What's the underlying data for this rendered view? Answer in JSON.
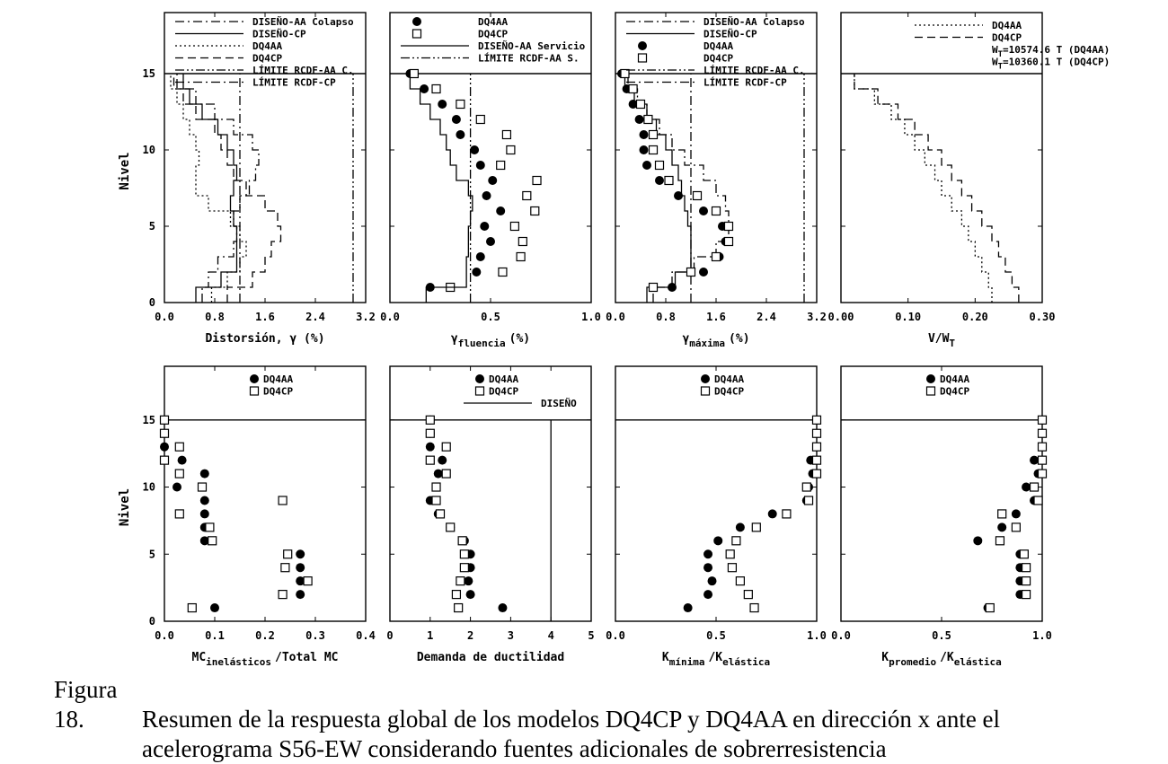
{
  "chart_data": [
    {
      "id": "p1",
      "type": "line",
      "xlim": [
        0,
        3.2
      ],
      "ylim": [
        0,
        19
      ],
      "xticks": [
        0,
        0.8,
        1.6,
        2.4,
        3.2
      ],
      "xtick_labels": [
        "0.0",
        "0.8",
        "1.6",
        "2.4",
        "3.2"
      ],
      "yticks": [
        0,
        5,
        10,
        15
      ],
      "ytick_labels": [
        "0",
        "5",
        "10",
        "15"
      ],
      "ylabel": "Nivel",
      "xlabel_parts": [
        "Distorsión, γ (%)"
      ],
      "roof_level": 15,
      "series": [
        {
          "name": "DISEÑO-AA Colapso",
          "style": "dashdot",
          "y": [
            1,
            2,
            3,
            4,
            5,
            6,
            7,
            8,
            9,
            10,
            11,
            12,
            13,
            14,
            15
          ],
          "values": [
            0.6,
            0.7,
            0.85,
            1.1,
            1.15,
            1.1,
            1.2,
            1.35,
            1.45,
            1.5,
            1.4,
            1.1,
            0.8,
            0.5,
            0.2
          ]
        },
        {
          "name": "DISEÑO-CP",
          "style": "solid",
          "y": [
            1,
            2,
            3,
            4,
            5,
            6,
            7,
            8,
            9,
            10,
            11,
            12,
            13,
            14,
            15
          ],
          "values": [
            0.5,
            0.9,
            1.15,
            1.15,
            1.15,
            1.1,
            1.05,
            1.1,
            1.15,
            1.1,
            1.0,
            0.85,
            0.6,
            0.4,
            0.3
          ]
        },
        {
          "name": "DQ4AA",
          "style": "dotted",
          "y": [
            1,
            2,
            3,
            4,
            5,
            6,
            7,
            8,
            9,
            10,
            11,
            12,
            13,
            14,
            15
          ],
          "values": [
            0.75,
            1.0,
            1.2,
            1.3,
            1.2,
            1.05,
            0.7,
            0.5,
            0.5,
            0.55,
            0.5,
            0.4,
            0.3,
            0.2,
            0.1
          ]
        },
        {
          "name": "DQ4CP",
          "style": "dashed",
          "y": [
            1,
            2,
            3,
            4,
            5,
            6,
            7,
            8,
            9,
            10,
            11,
            12,
            13,
            14,
            15
          ],
          "values": [
            1.0,
            1.4,
            1.6,
            1.7,
            1.85,
            1.8,
            1.6,
            1.3,
            1.1,
            1.0,
            0.9,
            0.8,
            0.5,
            0.3,
            0.15
          ]
        }
      ],
      "vlines": [
        {
          "name": "LÍMITE RCDF-AA C.",
          "x": 3.0,
          "style": "dashdotdot"
        },
        {
          "name": "LÍMITE RCDF-CP",
          "x": 1.2,
          "style": "dashdot"
        }
      ],
      "legend": [
        "DISEÑO-AA Colapso",
        "DISEÑO-CP",
        "DQ4AA",
        "DQ4CP",
        "LÍMITE RCDF-AA C.",
        "LÍMITE RCDF-CP"
      ]
    },
    {
      "id": "p2",
      "type": "scatter",
      "xlim": [
        0,
        1.0
      ],
      "ylim": [
        0,
        19
      ],
      "xticks": [
        0,
        0.5,
        1.0
      ],
      "xtick_labels": [
        "0.0",
        "0.5",
        "1.0"
      ],
      "yticks": [
        0,
        5,
        10,
        15
      ],
      "ytick_labels": [],
      "xlabel_parts": [
        "γ",
        "fluencia",
        "(%)"
      ],
      "roof_level": 15,
      "series": [
        {
          "name": "DQ4AA",
          "marker": "filled-circle",
          "y": [
            1,
            2,
            3,
            4,
            5,
            6,
            7,
            8,
            9,
            10,
            11,
            12,
            13,
            14,
            15
          ],
          "values": [
            0.2,
            0.43,
            0.45,
            0.5,
            0.47,
            0.55,
            0.48,
            0.51,
            0.45,
            0.42,
            0.35,
            0.33,
            0.26,
            0.17,
            0.1
          ]
        },
        {
          "name": "DQ4CP",
          "marker": "open-square",
          "y": [
            1,
            2,
            3,
            4,
            5,
            6,
            7,
            8,
            9,
            10,
            11,
            12,
            13,
            14,
            15
          ],
          "values": [
            0.3,
            0.56,
            0.65,
            0.66,
            0.62,
            0.72,
            0.68,
            0.73,
            0.55,
            0.6,
            0.58,
            0.45,
            0.35,
            0.23,
            0.12
          ]
        },
        {
          "name": "DISEÑO-AA Servicio",
          "style": "solid",
          "y": [
            1,
            2,
            3,
            4,
            5,
            6,
            7,
            8,
            9,
            10,
            11,
            12,
            13,
            14,
            15
          ],
          "values": [
            0.18,
            0.38,
            0.38,
            0.39,
            0.39,
            0.4,
            0.41,
            0.39,
            0.33,
            0.3,
            0.28,
            0.25,
            0.2,
            0.15,
            0.1
          ]
        }
      ],
      "vlines": [
        {
          "name": "LÍMITE RCDF-AA S.",
          "x": 0.4,
          "style": "dashdotdot"
        }
      ],
      "legend": [
        "DQ4AA",
        "DQ4CP",
        "DISEÑO-AA Servicio",
        "LÍMITE RCDF-AA S."
      ]
    },
    {
      "id": "p3",
      "type": "scatter",
      "xlim": [
        0,
        3.2
      ],
      "ylim": [
        0,
        19
      ],
      "xticks": [
        0,
        0.8,
        1.6,
        2.4,
        3.2
      ],
      "xtick_labels": [
        "0.0",
        "0.8",
        "1.6",
        "2.4",
        "3.2"
      ],
      "yticks": [
        0,
        5,
        10,
        15
      ],
      "ytick_labels": [],
      "xlabel_parts": [
        "γ",
        "máxima",
        "(%)"
      ],
      "roof_level": 15,
      "series": [
        {
          "name": "DISEÑO-AA Colapso",
          "style": "dashdot",
          "y": [
            1,
            2,
            3,
            4,
            5,
            6,
            7,
            8,
            9,
            10,
            11,
            12,
            13,
            14,
            15
          ],
          "values": [
            0.6,
            0.9,
            1.25,
            1.6,
            1.8,
            1.8,
            1.75,
            1.6,
            1.4,
            1.1,
            0.9,
            0.7,
            0.5,
            0.35,
            0.2
          ]
        },
        {
          "name": "DISEÑO-CP",
          "style": "solid",
          "y": [
            1,
            2,
            3,
            4,
            5,
            6,
            7,
            8,
            9,
            10,
            11,
            12,
            13,
            14,
            15
          ],
          "values": [
            0.5,
            0.95,
            1.2,
            1.2,
            1.2,
            1.15,
            1.1,
            1.05,
            1.0,
            0.9,
            0.8,
            0.65,
            0.5,
            0.3,
            0.15
          ]
        },
        {
          "name": "DQ4AA",
          "marker": "filled-circle",
          "y": [
            1,
            2,
            3,
            4,
            5,
            6,
            7,
            8,
            9,
            10,
            11,
            12,
            13,
            14,
            15
          ],
          "values": [
            0.9,
            1.4,
            1.65,
            1.75,
            1.7,
            1.4,
            1.0,
            0.7,
            0.5,
            0.45,
            0.45,
            0.38,
            0.28,
            0.18,
            0.1
          ]
        },
        {
          "name": "DQ4CP",
          "marker": "open-square",
          "y": [
            1,
            2,
            3,
            4,
            5,
            6,
            7,
            8,
            9,
            10,
            11,
            12,
            13,
            14,
            15
          ],
          "values": [
            0.6,
            1.2,
            1.6,
            1.8,
            1.8,
            1.6,
            1.3,
            0.85,
            0.7,
            0.6,
            0.6,
            0.52,
            0.4,
            0.28,
            0.15
          ]
        }
      ],
      "vlines": [
        {
          "name": "LÍMITE RCDF-AA C.",
          "x": 3.0,
          "style": "dashdotdot"
        },
        {
          "name": "LÍMITE RCDF-CP",
          "x": 1.2,
          "style": "dashdot"
        }
      ],
      "legend": [
        "DISEÑO-AA Colapso",
        "DISEÑO-CP",
        "DQ4AA",
        "DQ4CP",
        "LÍMITE RCDF-AA C.",
        "LÍMITE RCDF-CP"
      ]
    },
    {
      "id": "p4",
      "type": "line",
      "xlim": [
        0,
        0.3
      ],
      "ylim": [
        0,
        19
      ],
      "xticks": [
        0,
        0.1,
        0.2,
        0.3
      ],
      "xtick_labels": [
        "0.00",
        "0.10",
        "0.20",
        "0.30"
      ],
      "yticks": [
        0,
        5,
        10,
        15
      ],
      "ytick_labels": [],
      "xlabel_parts": [
        "V/W",
        "T"
      ],
      "roof_level": 15,
      "series": [
        {
          "name": "DQ4AA",
          "style": "dotted",
          "y": [
            1,
            2,
            3,
            4,
            5,
            6,
            7,
            8,
            9,
            10,
            11,
            12,
            13,
            14,
            15
          ],
          "values": [
            0.225,
            0.22,
            0.21,
            0.2,
            0.19,
            0.18,
            0.165,
            0.15,
            0.14,
            0.125,
            0.11,
            0.095,
            0.075,
            0.05,
            0.02
          ]
        },
        {
          "name": "DQ4CP",
          "style": "dashed",
          "y": [
            1,
            2,
            3,
            4,
            5,
            6,
            7,
            8,
            9,
            10,
            11,
            12,
            13,
            14,
            15
          ],
          "values": [
            0.265,
            0.255,
            0.245,
            0.235,
            0.225,
            0.21,
            0.195,
            0.18,
            0.165,
            0.15,
            0.13,
            0.11,
            0.085,
            0.055,
            0.02
          ]
        }
      ],
      "vlines": [],
      "legend": [
        "DQ4AA",
        "DQ4CP"
      ],
      "legend_notes": [
        "W_T=10574.6 T (DQ4AA)",
        "W_T=10360.1 T (DQ4CP)"
      ]
    },
    {
      "id": "p5",
      "type": "scatter",
      "xlim": [
        0,
        0.4
      ],
      "ylim": [
        0,
        19
      ],
      "xticks": [
        0,
        0.1,
        0.2,
        0.3,
        0.4
      ],
      "xtick_labels": [
        "0.0",
        "0.1",
        "0.2",
        "0.3",
        "0.4"
      ],
      "yticks": [
        0,
        5,
        10,
        15
      ],
      "ytick_labels": [
        "0",
        "5",
        "10",
        "15"
      ],
      "ylabel": "Nivel",
      "xlabel_parts": [
        "MC",
        "inelásticos",
        "/Total MC"
      ],
      "roof_level": 15,
      "series": [
        {
          "name": "DQ4AA",
          "marker": "filled-circle",
          "y": [
            1,
            2,
            3,
            4,
            5,
            6,
            7,
            8,
            9,
            10,
            11,
            12,
            13,
            14,
            15
          ],
          "values": [
            0.1,
            0.27,
            0.27,
            0.27,
            0.27,
            0.08,
            0.08,
            0.08,
            0.08,
            0.025,
            0.08,
            0.035,
            0.0,
            0.0,
            0.0
          ]
        },
        {
          "name": "DQ4CP",
          "marker": "open-square",
          "y": [
            1,
            2,
            3,
            4,
            5,
            6,
            7,
            8,
            9,
            10,
            11,
            12,
            13,
            14,
            15
          ],
          "values": [
            0.055,
            0.235,
            0.285,
            0.24,
            0.245,
            0.095,
            0.09,
            0.03,
            0.235,
            0.075,
            0.03,
            0.0,
            0.03,
            0.0,
            0.0
          ]
        }
      ],
      "vlines": [],
      "legend": [
        "DQ4AA",
        "DQ4CP"
      ]
    },
    {
      "id": "p6",
      "type": "scatter",
      "xlim": [
        0,
        5
      ],
      "ylim": [
        0,
        19
      ],
      "xticks": [
        0,
        1,
        2,
        3,
        4,
        5
      ],
      "xtick_labels": [
        "0",
        "1",
        "2",
        "3",
        "4",
        "5"
      ],
      "yticks": [
        0,
        5,
        10,
        15
      ],
      "ytick_labels": [],
      "xlabel_parts": [
        "Demanda de ductilidad"
      ],
      "roof_level": 15,
      "series": [
        {
          "name": "DQ4AA",
          "marker": "filled-circle",
          "y": [
            1,
            2,
            3,
            4,
            5,
            6,
            7,
            8,
            9,
            10,
            11,
            12,
            13,
            14,
            15
          ],
          "values": [
            2.8,
            2.0,
            1.95,
            2.0,
            2.0,
            1.85,
            1.5,
            1.2,
            1.0,
            1.15,
            1.2,
            1.3,
            1.0,
            1.0,
            1.0
          ]
        },
        {
          "name": "DQ4CP",
          "marker": "open-square",
          "y": [
            1,
            2,
            3,
            4,
            5,
            6,
            7,
            8,
            9,
            10,
            11,
            12,
            13,
            14,
            15
          ],
          "values": [
            1.7,
            1.65,
            1.75,
            1.85,
            1.85,
            1.8,
            1.5,
            1.25,
            1.15,
            1.15,
            1.4,
            1.0,
            1.4,
            1.0,
            1.0
          ]
        }
      ],
      "vlines": [
        {
          "name": "DISEÑO",
          "x": 4.0,
          "style": "solid"
        }
      ],
      "legend": [
        "DQ4AA",
        "DQ4CP",
        "DISEÑO"
      ]
    },
    {
      "id": "p7",
      "type": "scatter",
      "xlim": [
        0,
        1.0
      ],
      "ylim": [
        0,
        19
      ],
      "xticks": [
        0,
        0.5,
        1.0
      ],
      "xtick_labels": [
        "0.0",
        "0.5",
        "1.0"
      ],
      "yticks": [
        0,
        5,
        10,
        15
      ],
      "ytick_labels": [],
      "xlabel_parts": [
        "K",
        "mínima",
        "/K",
        "elástica"
      ],
      "roof_level": 15,
      "series": [
        {
          "name": "DQ4AA",
          "marker": "filled-circle",
          "y": [
            1,
            2,
            3,
            4,
            5,
            6,
            7,
            8,
            9,
            10,
            11,
            12,
            13,
            14,
            15
          ],
          "values": [
            0.36,
            0.46,
            0.48,
            0.46,
            0.46,
            0.51,
            0.62,
            0.78,
            0.95,
            0.96,
            0.98,
            0.97,
            1.0,
            1.0,
            1.0
          ]
        },
        {
          "name": "DQ4CP",
          "marker": "open-square",
          "y": [
            1,
            2,
            3,
            4,
            5,
            6,
            7,
            8,
            9,
            10,
            11,
            12,
            13,
            14,
            15
          ],
          "values": [
            0.69,
            0.66,
            0.62,
            0.58,
            0.57,
            0.6,
            0.7,
            0.85,
            0.96,
            0.95,
            1.0,
            1.0,
            1.0,
            1.0,
            1.0
          ]
        }
      ],
      "vlines": [],
      "legend": [
        "DQ4AA",
        "DQ4CP"
      ]
    },
    {
      "id": "p8",
      "type": "scatter",
      "xlim": [
        0,
        1.0
      ],
      "ylim": [
        0,
        19
      ],
      "xticks": [
        0,
        0.5,
        1.0
      ],
      "xtick_labels": [
        "0.0",
        "0.5",
        "1.0"
      ],
      "yticks": [
        0,
        5,
        10,
        15
      ],
      "ytick_labels": [],
      "xlabel_parts": [
        "K",
        "promedio",
        "/K",
        "elástica"
      ],
      "roof_level": 15,
      "series": [
        {
          "name": "DQ4AA",
          "marker": "filled-circle",
          "y": [
            1,
            2,
            3,
            4,
            5,
            6,
            7,
            8,
            9,
            10,
            11,
            12,
            13,
            14,
            15
          ],
          "values": [
            0.73,
            0.89,
            0.89,
            0.89,
            0.89,
            0.68,
            0.8,
            0.87,
            0.96,
            0.92,
            0.98,
            0.96,
            1.0,
            1.0,
            1.0
          ]
        },
        {
          "name": "DQ4CP",
          "marker": "open-square",
          "y": [
            1,
            2,
            3,
            4,
            5,
            6,
            7,
            8,
            9,
            10,
            11,
            12,
            13,
            14,
            15
          ],
          "values": [
            0.74,
            0.92,
            0.92,
            0.92,
            0.91,
            0.79,
            0.87,
            0.8,
            0.98,
            0.96,
            1.0,
            1.0,
            1.0,
            1.0,
            1.0
          ]
        }
      ],
      "vlines": [],
      "legend": [
        "DQ4AA",
        "DQ4CP"
      ]
    }
  ],
  "caption": {
    "label": "Figura 18.",
    "line1": "Resumen de la respuesta global de los modelos DQ4CP y DQ4AA en dirección x ante el",
    "line2": "acelerograma S56-EW considerando fuentes adicionales de sobrerresistencia"
  }
}
